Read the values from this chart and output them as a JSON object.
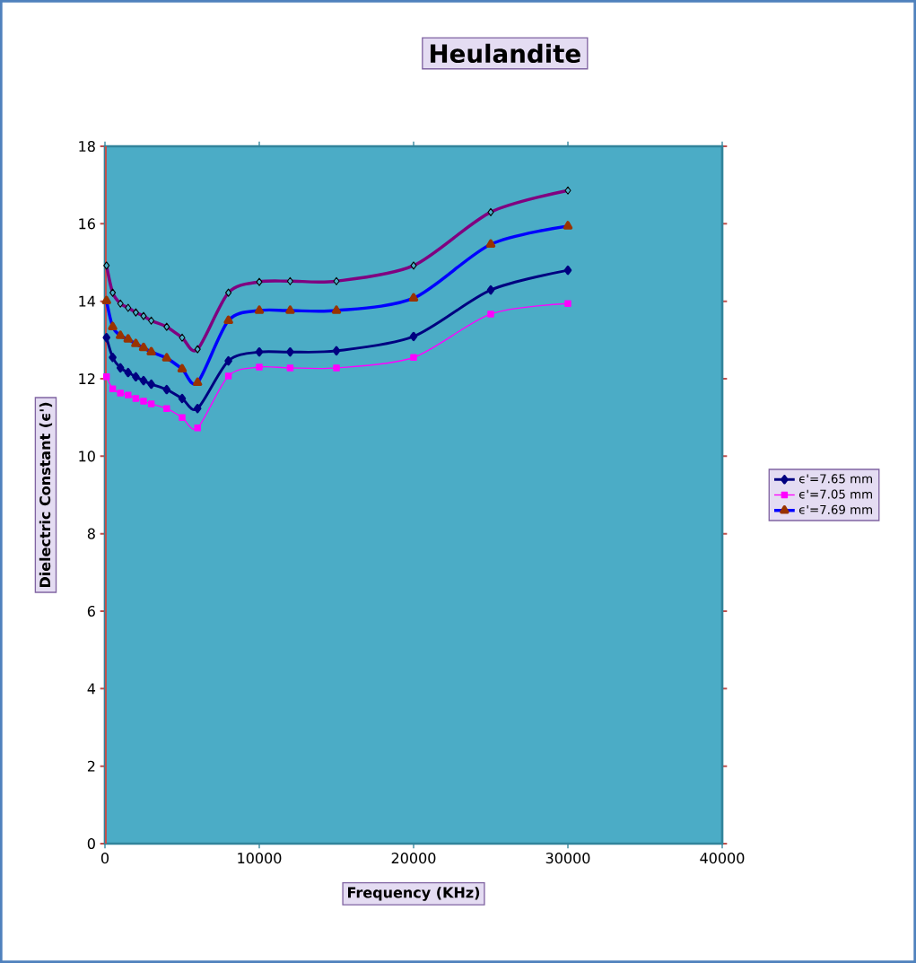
{
  "chart_data": {
    "type": "line",
    "title": "Heulandite",
    "xlabel": "Frequency (KHz)",
    "ylabel": "Dielectric Constant (ϵ')",
    "x": [
      100,
      500,
      1000,
      1500,
      2000,
      2500,
      3000,
      4000,
      5000,
      6000,
      8000,
      10000,
      12000,
      15000,
      20000,
      25000,
      30000
    ],
    "series": [
      {
        "name": "ϵ'=7.65 mm",
        "color": "#000080",
        "marker": "diamond",
        "values": [
          13.06,
          12.55,
          12.28,
          12.16,
          12.05,
          11.95,
          11.86,
          11.72,
          11.49,
          11.23,
          12.46,
          12.69,
          12.69,
          12.72,
          13.09,
          14.29,
          14.8
        ]
      },
      {
        "name": "ϵ'=7.05 mm",
        "color": "#ff00ff",
        "marker": "square",
        "values": [
          12.05,
          11.74,
          11.63,
          11.58,
          11.49,
          11.42,
          11.35,
          11.23,
          11.0,
          10.73,
          12.07,
          12.3,
          12.28,
          12.28,
          12.55,
          13.67,
          13.94
        ]
      },
      {
        "name": "ϵ'=7.69 mm",
        "color": "#0000ff",
        "marker": "triangle",
        "values": [
          14.01,
          13.34,
          13.11,
          13.02,
          12.9,
          12.8,
          12.69,
          12.53,
          12.25,
          11.9,
          13.5,
          13.76,
          13.76,
          13.76,
          14.08,
          15.47,
          15.94
        ]
      },
      {
        "color": "#800080",
        "marker": "diamond",
        "values": [
          14.92,
          14.22,
          13.94,
          13.83,
          13.71,
          13.62,
          13.5,
          13.34,
          13.06,
          12.76,
          14.22,
          14.5,
          14.52,
          14.52,
          14.92,
          16.3,
          16.86
        ]
      }
    ],
    "xlim": [
      0,
      40000
    ],
    "xticks": [
      0,
      10000,
      20000,
      30000,
      40000
    ],
    "ylim": [
      0,
      18
    ],
    "yticks": [
      0,
      2,
      4,
      6,
      8,
      10,
      12,
      14,
      16,
      18
    ],
    "grid": false,
    "legend": "right"
  }
}
